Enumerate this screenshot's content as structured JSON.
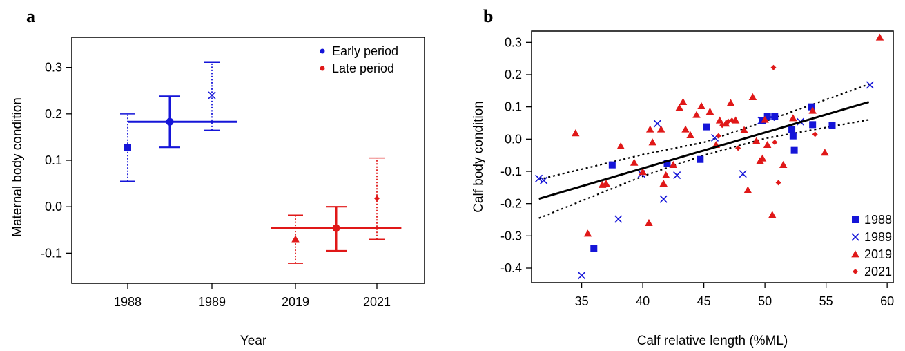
{
  "colors": {
    "blue": "#1515d8",
    "red": "#e01818",
    "black": "#000000"
  },
  "chart_data": [
    {
      "panel": "a",
      "type": "scatter",
      "xlabel": "Year",
      "ylabel": "Maternal body condition",
      "categories": [
        "1988",
        "1989",
        "2019",
        "2021"
      ],
      "ylim": [
        -0.165,
        0.365
      ],
      "yticks": [
        -0.1,
        0.0,
        0.1,
        0.2,
        0.3
      ],
      "ytick_labels": [
        "-0.1",
        "0.0",
        "0.1",
        "0.2",
        "0.3"
      ],
      "legend": {
        "placement": "top-right",
        "entries": [
          {
            "label": "Early period",
            "color": "#1515d8"
          },
          {
            "label": "Late period",
            "color": "#e01818"
          }
        ]
      },
      "years": [
        {
          "category": "1988",
          "mean": 0.128,
          "lower": 0.055,
          "upper": 0.2,
          "marker": "square",
          "color": "#1515d8"
        },
        {
          "category": "1989",
          "mean": 0.24,
          "lower": 0.165,
          "upper": 0.311,
          "marker": "x",
          "color": "#1515d8"
        },
        {
          "category": "2019",
          "mean": -0.07,
          "lower": -0.122,
          "upper": -0.018,
          "marker": "triangle",
          "color": "#e01818"
        },
        {
          "category": "2021",
          "mean": 0.018,
          "lower": -0.07,
          "upper": 0.105,
          "marker": "diamond",
          "color": "#e01818"
        }
      ],
      "periods": [
        {
          "label": "Early period",
          "mean": 0.183,
          "lower": 0.128,
          "upper": 0.238,
          "x_from": 0.0,
          "x_to": 1.3,
          "x_center": 0.5,
          "color": "#1515d8"
        },
        {
          "label": "Late period",
          "mean": -0.046,
          "lower": -0.095,
          "upper": 0.0,
          "x_from": 1.7,
          "x_to": 3.3,
          "x_center": 2.5,
          "color": "#e01818"
        }
      ]
    },
    {
      "panel": "b",
      "type": "scatter",
      "xlabel": "Calf relative length (%ML)",
      "ylabel": "Calf body condition",
      "xlim": [
        30.9,
        60.5
      ],
      "ylim": [
        -0.445,
        0.335
      ],
      "xticks": [
        35,
        40,
        45,
        50,
        55,
        60
      ],
      "yticks": [
        -0.4,
        -0.3,
        -0.2,
        -0.1,
        0.0,
        0.1,
        0.2,
        0.3
      ],
      "ytick_labels": [
        "-0.4",
        "-0.3",
        "-0.2",
        "-0.1",
        "0.0",
        "0.1",
        "0.2",
        "0.3"
      ],
      "legend": {
        "placement": "bottom-right",
        "entries": [
          {
            "label": "1988",
            "marker": "square",
            "color": "#1515d8"
          },
          {
            "label": "1989",
            "marker": "x",
            "color": "#1515d8"
          },
          {
            "label": "2019",
            "marker": "triangle",
            "color": "#e01818"
          },
          {
            "label": "2021",
            "marker": "diamond",
            "color": "#e01818"
          }
        ]
      },
      "regression": {
        "x": [
          31.5,
          58.5
        ],
        "y": [
          -0.185,
          0.115
        ]
      },
      "ci_lower": {
        "x": [
          31.5,
          40,
          45,
          50,
          58.5
        ],
        "y": [
          -0.245,
          -0.115,
          -0.05,
          0.002,
          0.06
        ]
      },
      "ci_upper": {
        "x": [
          31.5,
          40,
          45,
          50,
          58.5
        ],
        "y": [
          -0.125,
          -0.048,
          -0.01,
          0.055,
          0.17
        ]
      },
      "series": [
        {
          "name": "1988",
          "marker": "square",
          "color": "#1515d8",
          "x": [
            36.0,
            37.5,
            42.0,
            44.7,
            45.2,
            49.8,
            50.2,
            50.8,
            52.2,
            52.3,
            52.4,
            53.8,
            53.9,
            55.5
          ],
          "y": [
            -0.34,
            -0.08,
            -0.075,
            -0.063,
            0.038,
            0.058,
            0.07,
            0.07,
            0.03,
            0.01,
            -0.035,
            0.1,
            0.045,
            0.043
          ]
        },
        {
          "name": "1989",
          "marker": "x",
          "color": "#1515d8",
          "x": [
            31.5,
            31.9,
            35.0,
            38.0,
            39.9,
            41.2,
            41.7,
            42.8,
            45.9,
            48.2,
            49.7,
            50.5,
            52.9,
            58.6
          ],
          "y": [
            -0.122,
            -0.128,
            -0.423,
            -0.248,
            -0.108,
            0.048,
            -0.186,
            -0.112,
            0.004,
            -0.108,
            0.058,
            0.068,
            0.054,
            0.168
          ]
        },
        {
          "name": "2019",
          "marker": "triangle",
          "color": "#e01818",
          "x": [
            34.5,
            35.5,
            36.7,
            37.0,
            38.2,
            39.3,
            40.0,
            40.5,
            40.6,
            40.8,
            41.5,
            41.7,
            41.9,
            42.5,
            43.0,
            43.3,
            43.5,
            43.9,
            44.4,
            44.8,
            45.5,
            46.0,
            46.3,
            46.8,
            47.2,
            47.6,
            48.3,
            48.6,
            49.0,
            49.3,
            49.6,
            49.8,
            50.0,
            50.2,
            50.6,
            51.5,
            52.3,
            53.9,
            54.9,
            59.4
          ],
          "y": [
            0.018,
            -0.293,
            -0.142,
            -0.138,
            -0.022,
            -0.073,
            -0.102,
            -0.26,
            0.03,
            -0.01,
            0.03,
            -0.138,
            -0.112,
            -0.08,
            0.097,
            0.115,
            0.03,
            0.012,
            0.075,
            0.102,
            0.085,
            -0.018,
            0.058,
            0.048,
            0.112,
            0.058,
            0.028,
            -0.158,
            0.13,
            -0.006,
            -0.068,
            -0.06,
            0.06,
            -0.018,
            -0.235,
            -0.08,
            0.065,
            0.088,
            -0.042,
            0.315
          ]
        },
        {
          "name": "2021",
          "marker": "diamond",
          "color": "#e01818",
          "x": [
            46.2,
            46.5,
            47.0,
            47.3,
            47.8,
            50.7,
            50.8,
            51.1,
            54.1
          ],
          "y": [
            0.01,
            0.043,
            0.055,
            0.058,
            -0.028,
            0.222,
            -0.01,
            -0.135,
            0.015
          ]
        }
      ]
    }
  ]
}
